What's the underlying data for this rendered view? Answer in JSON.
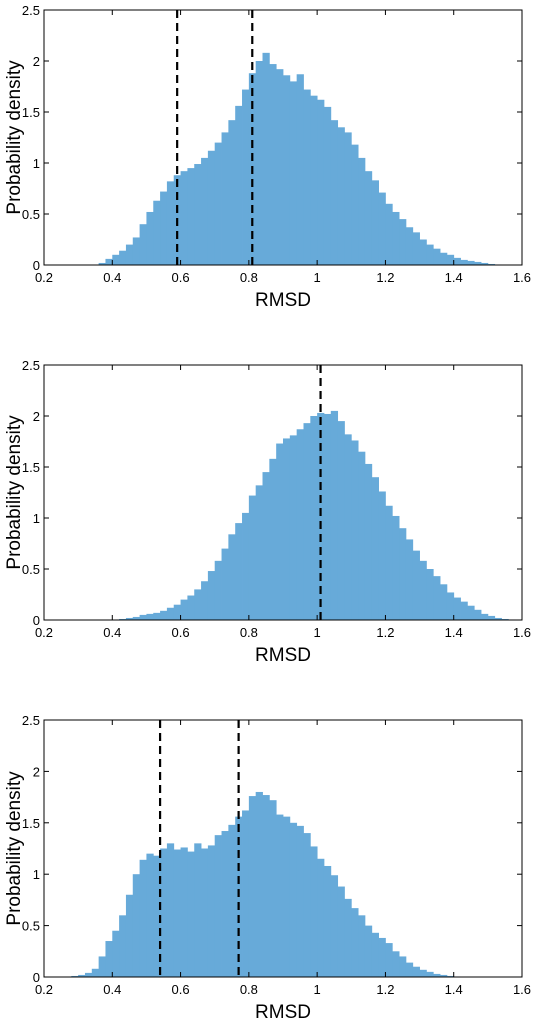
{
  "chart_data": [
    {
      "type": "histogram",
      "xlabel": "RMSD",
      "ylabel": "Probability density",
      "xlim": [
        0.2,
        1.6
      ],
      "ylim": [
        0,
        2.5
      ],
      "xticks": [
        "0.2",
        "0.4",
        "0.6",
        "0.8",
        "1",
        "1.2",
        "1.4",
        "1.6"
      ],
      "yticks": [
        "0",
        "0.5",
        "1",
        "1.5",
        "2",
        "2.5"
      ],
      "bar_color": "#67aad9",
      "bin_start": 0.36,
      "bin_width": 0.02,
      "values": [
        0.02,
        0.06,
        0.1,
        0.14,
        0.2,
        0.27,
        0.4,
        0.52,
        0.63,
        0.72,
        0.82,
        0.88,
        0.92,
        0.95,
        0.99,
        1.05,
        1.12,
        1.2,
        1.3,
        1.42,
        1.56,
        1.72,
        1.88,
        2.0,
        2.08,
        1.97,
        1.92,
        1.86,
        1.8,
        1.87,
        1.72,
        1.66,
        1.62,
        1.55,
        1.42,
        1.35,
        1.3,
        1.18,
        1.05,
        0.92,
        0.83,
        0.71,
        0.6,
        0.52,
        0.45,
        0.37,
        0.32,
        0.25,
        0.2,
        0.16,
        0.12,
        0.1,
        0.07,
        0.05,
        0.04,
        0.03,
        0.02,
        0.01,
        0.005,
        0.002
      ],
      "vlines": [
        0.59,
        0.81
      ]
    },
    {
      "type": "histogram",
      "xlabel": "RMSD",
      "ylabel": "Probability density",
      "xlim": [
        0.2,
        1.6
      ],
      "ylim": [
        0,
        2.5
      ],
      "xticks": [
        "0.2",
        "0.4",
        "0.6",
        "0.8",
        "1",
        "1.2",
        "1.4",
        "1.6"
      ],
      "yticks": [
        "0",
        "0.5",
        "1",
        "1.5",
        "2",
        "2.5"
      ],
      "bar_color": "#67aad9",
      "bin_start": 0.42,
      "bin_width": 0.02,
      "values": [
        0.01,
        0.02,
        0.03,
        0.05,
        0.06,
        0.07,
        0.09,
        0.12,
        0.15,
        0.2,
        0.24,
        0.3,
        0.38,
        0.48,
        0.58,
        0.7,
        0.84,
        0.95,
        1.05,
        1.22,
        1.32,
        1.45,
        1.58,
        1.73,
        1.78,
        1.81,
        1.87,
        1.93,
        2.0,
        2.03,
        2.02,
        2.05,
        1.95,
        1.82,
        1.76,
        1.65,
        1.53,
        1.4,
        1.26,
        1.12,
        1.02,
        0.9,
        0.79,
        0.68,
        0.58,
        0.5,
        0.43,
        0.35,
        0.27,
        0.22,
        0.18,
        0.14,
        0.1,
        0.06,
        0.04,
        0.02,
        0.01,
        0.005,
        0.002
      ],
      "vlines": [
        1.01
      ]
    },
    {
      "type": "histogram",
      "xlabel": "RMSD",
      "ylabel": "Probability density",
      "xlim": [
        0.2,
        1.6
      ],
      "ylim": [
        0,
        2.5
      ],
      "xticks": [
        "0.2",
        "0.4",
        "0.6",
        "0.8",
        "1",
        "1.2",
        "1.4",
        "1.6"
      ],
      "yticks": [
        "0",
        "0.5",
        "1",
        "1.5",
        "2",
        "2.5"
      ],
      "bar_color": "#67aad9",
      "bin_start": 0.28,
      "bin_width": 0.02,
      "values": [
        0.01,
        0.02,
        0.04,
        0.08,
        0.2,
        0.35,
        0.45,
        0.6,
        0.8,
        1.0,
        1.14,
        1.2,
        1.18,
        1.25,
        1.3,
        1.24,
        1.26,
        1.22,
        1.3,
        1.25,
        1.28,
        1.38,
        1.42,
        1.48,
        1.56,
        1.62,
        1.76,
        1.8,
        1.77,
        1.72,
        1.58,
        1.56,
        1.5,
        1.47,
        1.4,
        1.27,
        1.15,
        1.08,
        0.99,
        0.88,
        0.76,
        0.67,
        0.6,
        0.5,
        0.43,
        0.38,
        0.33,
        0.25,
        0.2,
        0.14,
        0.1,
        0.07,
        0.05,
        0.03,
        0.02,
        0.01,
        0.005,
        0.002
      ],
      "vlines": [
        0.54,
        0.77
      ]
    }
  ]
}
